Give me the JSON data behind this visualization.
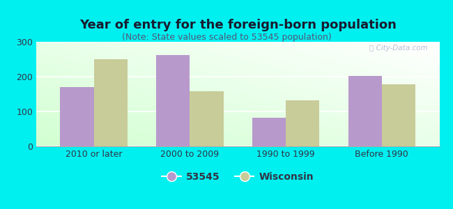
{
  "title": "Year of entry for the foreign-born population",
  "subtitle": "(Note: State values scaled to 53545 population)",
  "categories": [
    "2010 or later",
    "2000 to 2009",
    "1990 to 1999",
    "Before 1990"
  ],
  "values_53545": [
    170,
    262,
    82,
    202
  ],
  "values_wisconsin": [
    250,
    158,
    132,
    178
  ],
  "bar_color_53545": "#b899cc",
  "bar_color_wisconsin": "#c8cc99",
  "background_color": "#00f0f0",
  "ylim": [
    0,
    300
  ],
  "yticks": [
    0,
    100,
    200,
    300
  ],
  "bar_width": 0.35,
  "legend_label_53545": "53545",
  "legend_label_wisconsin": "Wisconsin",
  "title_fontsize": 13,
  "subtitle_fontsize": 9,
  "tick_fontsize": 9,
  "title_color": "#1a1a2e",
  "subtitle_color": "#555577"
}
